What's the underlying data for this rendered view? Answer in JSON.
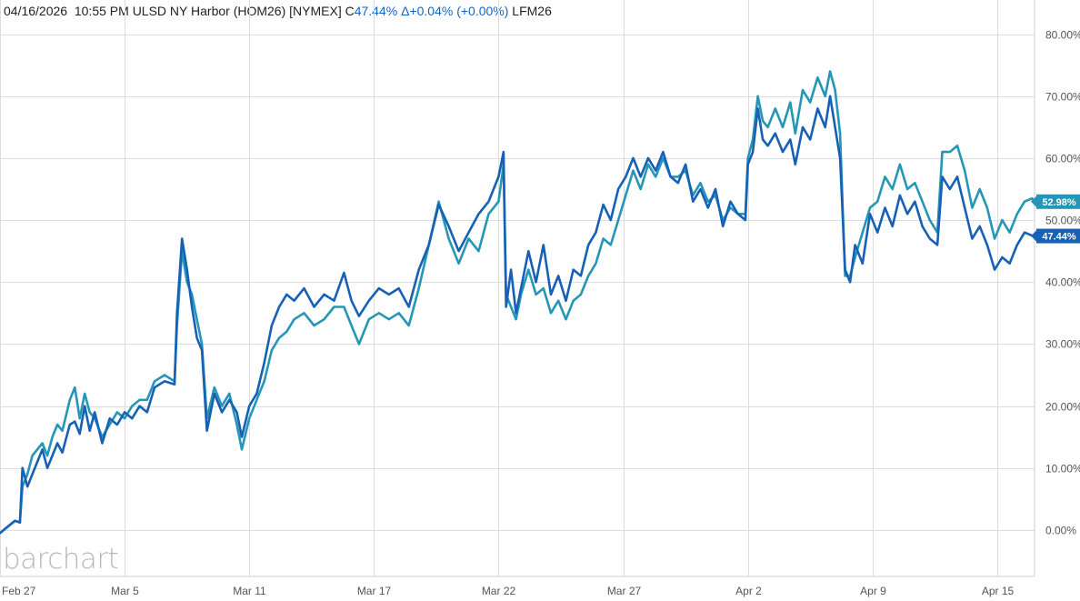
{
  "header": {
    "date": "04/16/2026",
    "time": "10:55 PM",
    "symbol": "ULSD NY Harbor (HOM26) [NYMEX]",
    "close_prefix": "C",
    "close": "47.44%",
    "change": "Δ+0.04% (+0.00%)",
    "compare_symbol": "LFM26"
  },
  "logo": "barchart",
  "colors": {
    "primary": "#1660b6",
    "compare": "#2596b6",
    "grid": "#dddddd"
  },
  "chart_data": {
    "type": "line",
    "y_unit": "%",
    "ylim": [
      -7.5,
      82
    ],
    "yticks": [
      "80.00%",
      "70.00%",
      "60.00%",
      "50.00%",
      "40.00%",
      "30.00%",
      "20.00%",
      "10.00%",
      "0.00%"
    ],
    "ytick_values": [
      80,
      70,
      60,
      50,
      40,
      30,
      20,
      10,
      0
    ],
    "xlim": [
      0,
      41.5
    ],
    "xticks": [
      "Feb 27",
      "Mar 5",
      "Mar 11",
      "Mar 17",
      "Mar 22",
      "Mar 27",
      "Apr 2",
      "Apr 9",
      "Apr 15"
    ],
    "xtick_positions": [
      0,
      5,
      10,
      15,
      20,
      25,
      30,
      35,
      40
    ],
    "grid": true,
    "series": [
      {
        "name": "HOM26",
        "color": "#1660b6",
        "last_label": "47.44%",
        "last": 47.44,
        "points": [
          [
            0,
            -0.5
          ],
          [
            0.3,
            0.5
          ],
          [
            0.6,
            1.5
          ],
          [
            0.8,
            1.2
          ],
          [
            0.9,
            10
          ],
          [
            1.1,
            7
          ],
          [
            1.3,
            9
          ],
          [
            1.5,
            11
          ],
          [
            1.7,
            13
          ],
          [
            1.9,
            10
          ],
          [
            2.1,
            12
          ],
          [
            2.3,
            14
          ],
          [
            2.5,
            12.5
          ],
          [
            2.8,
            17
          ],
          [
            3.0,
            17.5
          ],
          [
            3.2,
            15.5
          ],
          [
            3.4,
            20
          ],
          [
            3.6,
            16
          ],
          [
            3.8,
            19
          ],
          [
            4.1,
            14
          ],
          [
            4.4,
            18
          ],
          [
            4.7,
            17
          ],
          [
            5.0,
            19
          ],
          [
            5.3,
            18
          ],
          [
            5.6,
            20
          ],
          [
            5.9,
            19
          ],
          [
            6.2,
            23
          ],
          [
            6.6,
            24
          ],
          [
            7.0,
            23.5
          ],
          [
            7.1,
            35
          ],
          [
            7.3,
            47
          ],
          [
            7.5,
            42
          ],
          [
            7.7,
            36
          ],
          [
            7.9,
            31
          ],
          [
            8.1,
            29
          ],
          [
            8.3,
            16
          ],
          [
            8.6,
            22
          ],
          [
            8.9,
            19
          ],
          [
            9.2,
            21
          ],
          [
            9.5,
            19
          ],
          [
            9.7,
            15
          ],
          [
            10.0,
            20
          ],
          [
            10.3,
            22
          ],
          [
            10.6,
            27
          ],
          [
            10.9,
            33
          ],
          [
            11.2,
            36
          ],
          [
            11.5,
            38
          ],
          [
            11.8,
            37
          ],
          [
            12.2,
            39
          ],
          [
            12.6,
            36
          ],
          [
            13.0,
            38
          ],
          [
            13.4,
            37
          ],
          [
            13.8,
            41.5
          ],
          [
            14.1,
            37
          ],
          [
            14.4,
            34.5
          ],
          [
            14.8,
            37
          ],
          [
            15.2,
            39
          ],
          [
            15.6,
            38
          ],
          [
            16.0,
            39
          ],
          [
            16.4,
            36
          ],
          [
            16.8,
            42
          ],
          [
            17.2,
            46
          ],
          [
            17.6,
            52.5
          ],
          [
            18.0,
            49
          ],
          [
            18.4,
            45
          ],
          [
            18.8,
            48
          ],
          [
            19.2,
            51
          ],
          [
            19.6,
            53
          ],
          [
            20.0,
            57
          ],
          [
            20.2,
            61
          ],
          [
            20.3,
            36
          ],
          [
            20.5,
            42
          ],
          [
            20.7,
            35
          ],
          [
            20.9,
            39
          ],
          [
            21.2,
            45
          ],
          [
            21.5,
            40
          ],
          [
            21.8,
            46
          ],
          [
            22.1,
            38
          ],
          [
            22.4,
            41
          ],
          [
            22.7,
            37
          ],
          [
            23.0,
            42
          ],
          [
            23.3,
            41
          ],
          [
            23.6,
            46
          ],
          [
            23.9,
            48
          ],
          [
            24.2,
            52.5
          ],
          [
            24.5,
            50
          ],
          [
            24.8,
            55
          ],
          [
            25.1,
            57
          ],
          [
            25.4,
            60
          ],
          [
            25.7,
            57
          ],
          [
            26.0,
            60
          ],
          [
            26.3,
            58
          ],
          [
            26.6,
            61
          ],
          [
            26.9,
            57
          ],
          [
            27.2,
            56
          ],
          [
            27.5,
            59
          ],
          [
            27.8,
            53
          ],
          [
            28.1,
            55
          ],
          [
            28.4,
            52
          ],
          [
            28.7,
            55
          ],
          [
            29.0,
            49
          ],
          [
            29.3,
            53
          ],
          [
            29.6,
            51
          ],
          [
            29.9,
            50
          ],
          [
            30.0,
            59
          ],
          [
            30.2,
            61
          ],
          [
            30.4,
            68
          ],
          [
            30.6,
            63
          ],
          [
            30.8,
            62
          ],
          [
            31.1,
            64
          ],
          [
            31.4,
            61
          ],
          [
            31.7,
            63
          ],
          [
            31.9,
            59
          ],
          [
            32.2,
            65
          ],
          [
            32.5,
            63
          ],
          [
            32.8,
            68
          ],
          [
            33.1,
            65
          ],
          [
            33.3,
            70
          ],
          [
            33.5,
            65
          ],
          [
            33.7,
            60
          ],
          [
            33.9,
            42
          ],
          [
            34.1,
            40
          ],
          [
            34.3,
            46
          ],
          [
            34.6,
            43
          ],
          [
            34.9,
            51
          ],
          [
            35.2,
            48
          ],
          [
            35.5,
            52
          ],
          [
            35.8,
            49
          ],
          [
            36.1,
            54
          ],
          [
            36.4,
            51
          ],
          [
            36.7,
            53
          ],
          [
            37.0,
            49
          ],
          [
            37.3,
            47
          ],
          [
            37.6,
            46
          ],
          [
            37.8,
            57
          ],
          [
            38.1,
            55
          ],
          [
            38.4,
            57
          ],
          [
            38.7,
            52
          ],
          [
            39.0,
            47
          ],
          [
            39.3,
            49
          ],
          [
            39.6,
            46
          ],
          [
            39.9,
            42
          ],
          [
            40.2,
            44
          ],
          [
            40.5,
            43
          ],
          [
            40.8,
            46
          ],
          [
            41.1,
            48
          ],
          [
            41.4,
            47.5
          ],
          [
            41.5,
            47.44
          ]
        ]
      },
      {
        "name": "LFM26",
        "color": "#2596b6",
        "last_label": "52.98%",
        "last": 52.98,
        "points": [
          [
            0,
            -0.5
          ],
          [
            0.3,
            0.5
          ],
          [
            0.6,
            1.5
          ],
          [
            0.8,
            1.2
          ],
          [
            0.9,
            7
          ],
          [
            1.1,
            9
          ],
          [
            1.3,
            12
          ],
          [
            1.5,
            13
          ],
          [
            1.7,
            14
          ],
          [
            1.9,
            12
          ],
          [
            2.1,
            15
          ],
          [
            2.3,
            17
          ],
          [
            2.5,
            16
          ],
          [
            2.8,
            21
          ],
          [
            3.0,
            23
          ],
          [
            3.2,
            18
          ],
          [
            3.4,
            22
          ],
          [
            3.6,
            19
          ],
          [
            3.8,
            18
          ],
          [
            4.1,
            15
          ],
          [
            4.4,
            17
          ],
          [
            4.7,
            19
          ],
          [
            5.0,
            18
          ],
          [
            5.3,
            20
          ],
          [
            5.6,
            21
          ],
          [
            5.9,
            21
          ],
          [
            6.2,
            24
          ],
          [
            6.6,
            25
          ],
          [
            7.0,
            24
          ],
          [
            7.1,
            33
          ],
          [
            7.3,
            45
          ],
          [
            7.5,
            40
          ],
          [
            7.7,
            38
          ],
          [
            7.9,
            34
          ],
          [
            8.1,
            30
          ],
          [
            8.3,
            18
          ],
          [
            8.6,
            23
          ],
          [
            8.9,
            20
          ],
          [
            9.2,
            22
          ],
          [
            9.5,
            17
          ],
          [
            9.7,
            13
          ],
          [
            10.0,
            18
          ],
          [
            10.3,
            21
          ],
          [
            10.6,
            24
          ],
          [
            10.9,
            29
          ],
          [
            11.2,
            31
          ],
          [
            11.5,
            32
          ],
          [
            11.8,
            34
          ],
          [
            12.2,
            35
          ],
          [
            12.6,
            33
          ],
          [
            13.0,
            34
          ],
          [
            13.4,
            36
          ],
          [
            13.8,
            36
          ],
          [
            14.1,
            33
          ],
          [
            14.4,
            30
          ],
          [
            14.8,
            34
          ],
          [
            15.2,
            35
          ],
          [
            15.6,
            34
          ],
          [
            16.0,
            35
          ],
          [
            16.4,
            33
          ],
          [
            16.8,
            39
          ],
          [
            17.2,
            46
          ],
          [
            17.6,
            53
          ],
          [
            18.0,
            47
          ],
          [
            18.4,
            43
          ],
          [
            18.8,
            47
          ],
          [
            19.2,
            45
          ],
          [
            19.6,
            51
          ],
          [
            20.0,
            53
          ],
          [
            20.2,
            59
          ],
          [
            20.3,
            38
          ],
          [
            20.5,
            36
          ],
          [
            20.7,
            34
          ],
          [
            20.9,
            38
          ],
          [
            21.2,
            42
          ],
          [
            21.5,
            38
          ],
          [
            21.8,
            39
          ],
          [
            22.1,
            35
          ],
          [
            22.4,
            37
          ],
          [
            22.7,
            34
          ],
          [
            23.0,
            37
          ],
          [
            23.3,
            38
          ],
          [
            23.6,
            41
          ],
          [
            23.9,
            43
          ],
          [
            24.2,
            47
          ],
          [
            24.5,
            46
          ],
          [
            24.8,
            50
          ],
          [
            25.1,
            54
          ],
          [
            25.4,
            58
          ],
          [
            25.7,
            55
          ],
          [
            26.0,
            59
          ],
          [
            26.3,
            57
          ],
          [
            26.6,
            60
          ],
          [
            26.9,
            57
          ],
          [
            27.2,
            57
          ],
          [
            27.5,
            58
          ],
          [
            27.8,
            54
          ],
          [
            28.1,
            56
          ],
          [
            28.4,
            53
          ],
          [
            28.7,
            54
          ],
          [
            29.0,
            50
          ],
          [
            29.3,
            52
          ],
          [
            29.6,
            51
          ],
          [
            29.9,
            51
          ],
          [
            30.0,
            60
          ],
          [
            30.2,
            63
          ],
          [
            30.4,
            70
          ],
          [
            30.6,
            66
          ],
          [
            30.8,
            65
          ],
          [
            31.1,
            68
          ],
          [
            31.4,
            65
          ],
          [
            31.7,
            69
          ],
          [
            31.9,
            64
          ],
          [
            32.2,
            71
          ],
          [
            32.5,
            69
          ],
          [
            32.8,
            73
          ],
          [
            33.1,
            70
          ],
          [
            33.3,
            74
          ],
          [
            33.5,
            71
          ],
          [
            33.7,
            64
          ],
          [
            33.9,
            41
          ],
          [
            34.1,
            41
          ],
          [
            34.3,
            44
          ],
          [
            34.6,
            48
          ],
          [
            34.9,
            52
          ],
          [
            35.2,
            53
          ],
          [
            35.5,
            57
          ],
          [
            35.8,
            55
          ],
          [
            36.1,
            59
          ],
          [
            36.4,
            55
          ],
          [
            36.7,
            56
          ],
          [
            37.0,
            53
          ],
          [
            37.3,
            50
          ],
          [
            37.6,
            48
          ],
          [
            37.8,
            61
          ],
          [
            38.1,
            61
          ],
          [
            38.4,
            62
          ],
          [
            38.7,
            58
          ],
          [
            39.0,
            52
          ],
          [
            39.3,
            55
          ],
          [
            39.6,
            52
          ],
          [
            39.9,
            47
          ],
          [
            40.2,
            50
          ],
          [
            40.5,
            48
          ],
          [
            40.8,
            51
          ],
          [
            41.1,
            53
          ],
          [
            41.4,
            53.5
          ],
          [
            41.5,
            52.98
          ]
        ]
      }
    ]
  }
}
